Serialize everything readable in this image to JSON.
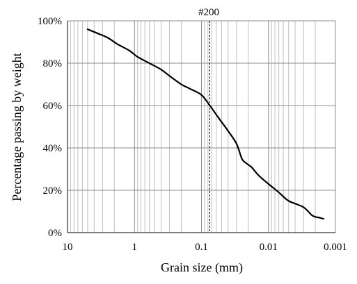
{
  "chart_data": {
    "type": "line",
    "title": "",
    "xlabel": "Grain size (mm)",
    "ylabel": "Percentage passing by weight",
    "x_scale": "log",
    "x_reversed": true,
    "xlim": [
      10,
      0.001
    ],
    "ylim": [
      0,
      100
    ],
    "x_ticks": [
      {
        "value": 10,
        "label": "10"
      },
      {
        "value": 1,
        "label": "1"
      },
      {
        "value": 0.1,
        "label": "0.1"
      },
      {
        "value": 0.01,
        "label": "0.01"
      },
      {
        "value": 0.001,
        "label": "0.001"
      }
    ],
    "y_ticks": [
      {
        "value": 0,
        "label": "0%"
      },
      {
        "value": 20,
        "label": "20%"
      },
      {
        "value": 40,
        "label": "40%"
      },
      {
        "value": 60,
        "label": "60%"
      },
      {
        "value": 80,
        "label": "80%"
      },
      {
        "value": 100,
        "label": "100%"
      }
    ],
    "grid": true,
    "reference_line": {
      "x": 0.075,
      "label": "#200",
      "style": "dashed"
    },
    "series": [
      {
        "x": [
          5,
          3.5,
          2.5,
          1.8,
          1.2,
          0.9,
          0.6,
          0.4,
          0.3,
          0.2,
          0.15,
          0.1,
          0.075,
          0.055,
          0.04,
          0.03,
          0.025,
          0.022,
          0.018,
          0.014,
          0.01,
          0.007,
          0.005,
          0.003,
          0.0022,
          0.0017,
          0.0015
        ],
        "y": [
          96,
          94,
          92,
          89,
          86,
          83,
          80,
          77,
          74,
          70,
          68,
          65,
          60,
          54,
          48,
          42,
          35,
          33,
          31,
          27,
          23,
          19,
          15,
          12,
          8,
          7,
          6.5
        ]
      }
    ]
  }
}
